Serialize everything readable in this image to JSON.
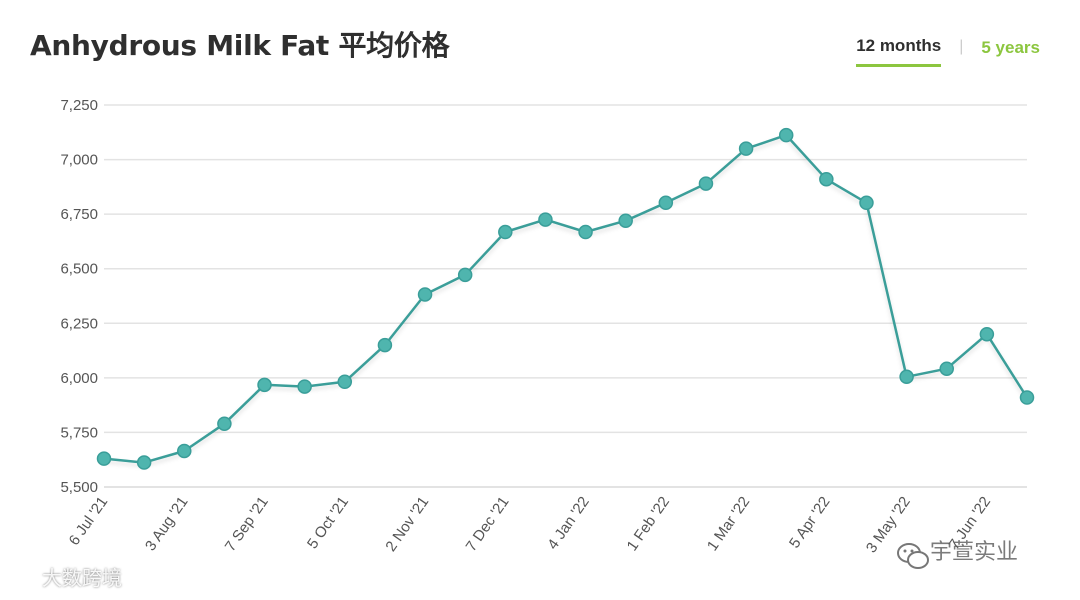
{
  "header": {
    "title": "Anhydrous Milk Fat 平均价格",
    "tabs": [
      {
        "label": "12 months",
        "active": true
      },
      {
        "label": "5 years",
        "active": false
      }
    ]
  },
  "watermarks": {
    "left": "大数跨境",
    "right": "宇萱实业"
  },
  "colors": {
    "line": "#3a9e99",
    "marker": "#4fb5ae",
    "grid": "#e3e3e3",
    "accent": "#8cc63f"
  },
  "chart_data": {
    "type": "line",
    "title": "Anhydrous Milk Fat 平均价格",
    "xlabel": "",
    "ylabel": "",
    "ylim": [
      5500,
      7250
    ],
    "yticks": [
      5500,
      5750,
      6000,
      6250,
      6500,
      6750,
      7000,
      7250
    ],
    "ytick_labels": [
      "5,500",
      "5,750",
      "6,000",
      "6,250",
      "6,500",
      "6,750",
      "7,000",
      "7,250"
    ],
    "xtick_labels": [
      "6 Jul '21",
      "3 Aug '21",
      "7 Sep '21",
      "5 Oct '21",
      "2 Nov '21",
      "7 Dec '21",
      "4 Jan '22",
      "1 Feb '22",
      "1 Mar '22",
      "5 Apr '22",
      "3 May '22",
      "7 Jun '22"
    ],
    "grid": true,
    "legend": "none",
    "series": [
      {
        "values": [
          5630,
          5612,
          5665,
          5790,
          5968,
          5960,
          5982,
          6150,
          6382,
          6472,
          6668,
          6725,
          6668,
          6720,
          6802,
          6890,
          7050,
          7112,
          6910,
          6802,
          6005,
          6042,
          6200,
          5910
        ]
      }
    ]
  }
}
